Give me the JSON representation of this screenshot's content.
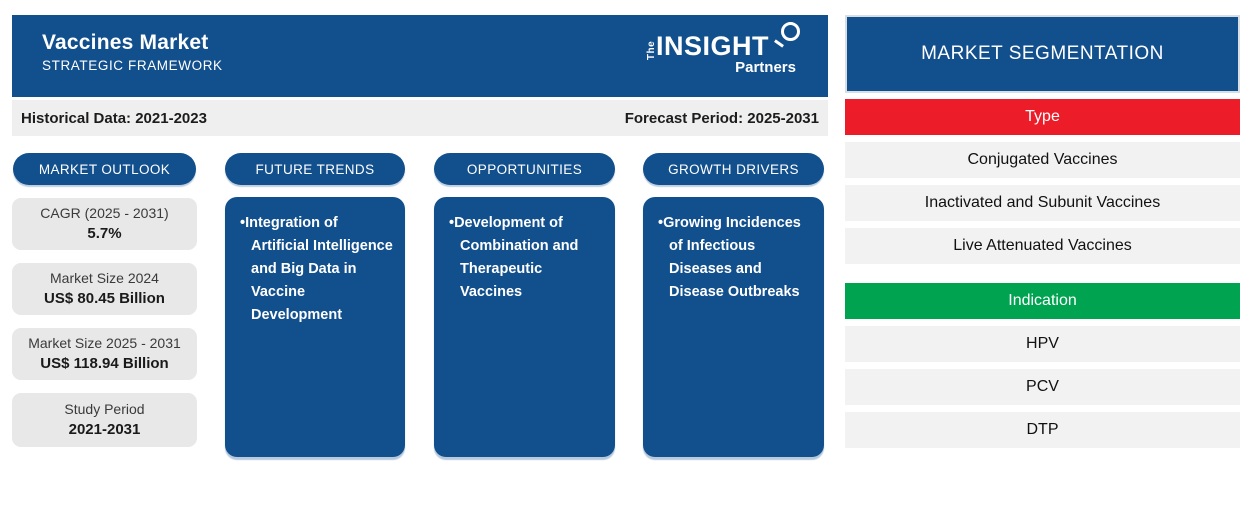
{
  "header": {
    "title": "Vaccines Market",
    "subtitle": "STRATEGIC FRAMEWORK",
    "logo": {
      "the": "The",
      "insight": "INSIGHT",
      "partners": "Partners"
    }
  },
  "info_bar": {
    "historical": "Historical Data: 2021-2023",
    "forecast": "Forecast Period: 2025-2031"
  },
  "columns": [
    {
      "label": "MARKET OUTLOOK",
      "stats": [
        {
          "label": "CAGR (2025 - 2031)",
          "value": "5.7%"
        },
        {
          "label": "Market Size 2024",
          "value": "US$ 80.45 Billion"
        },
        {
          "label": "Market Size 2025 - 2031",
          "value": "US$ 118.94 Billion"
        },
        {
          "label": "Study Period",
          "value": "2021-2031"
        }
      ]
    },
    {
      "label": "FUTURE TRENDS",
      "bullet": "Integration of Artificial Intelligence and Big Data in Vaccine Development"
    },
    {
      "label": "OPPORTUNITIES",
      "bullet": "Development of Combination and Therapeutic Vaccines"
    },
    {
      "label": "GROWTH DRIVERS",
      "bullet": "Growing Incidences of Infectious Diseases and Disease Outbreaks"
    }
  ],
  "segmentation": {
    "title": "MARKET SEGMENTATION",
    "groups": [
      {
        "label": "Type",
        "color": "#EC1C28",
        "items": [
          "Conjugated Vaccines",
          "Inactivated and Subunit Vaccines",
          "Live Attenuated Vaccines"
        ]
      },
      {
        "label": "Indication",
        "color": "#00A350",
        "items": [
          "HPV",
          "PCV",
          "DTP"
        ]
      }
    ]
  },
  "colors": {
    "brand_blue": "#124F8D",
    "type_red": "#EC1C28",
    "indication_green": "#00A350"
  }
}
